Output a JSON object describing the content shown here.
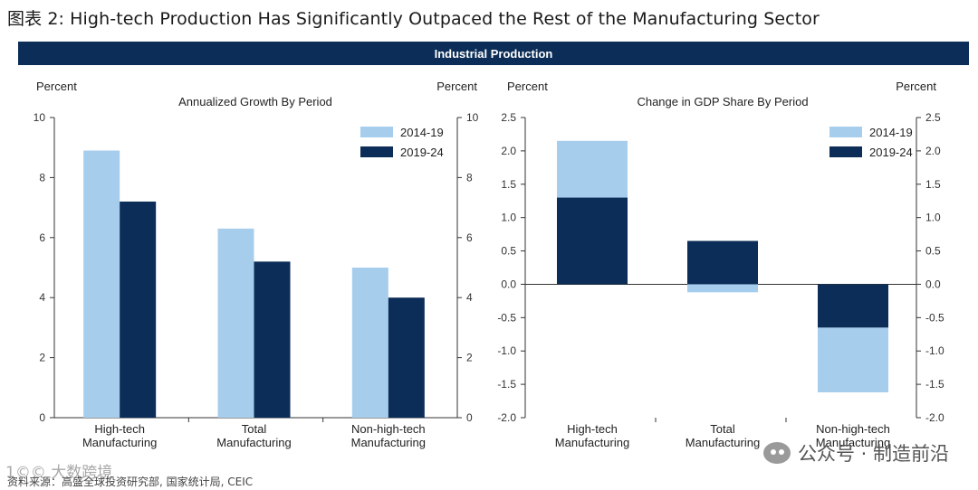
{
  "page": {
    "title": "图表 2: High-tech Production Has Significantly Outpaced the Rest of the Manufacturing Sector",
    "banner": "Industrial Production",
    "footnote": "资料来源：高盛全球投资研究部, 国家统计局, CEIC",
    "watermark_left": "1©© 大数跨境",
    "watermark_right": "公众号 · 制造前沿"
  },
  "colors": {
    "series_2014_19": "#a7cdec",
    "series_2019_24": "#0b2d57",
    "banner": "#0b2d57",
    "axis": "#333333"
  },
  "chart_data": [
    {
      "type": "bar",
      "title": "Annualized Growth By Period",
      "ylabel_left": "Percent",
      "ylabel_right": "Percent",
      "categories": [
        "High-tech\nManufacturing",
        "Total\nManufacturing",
        "Non-high-tech\nManufacturing"
      ],
      "series": [
        {
          "name": "2014-19",
          "values": [
            8.9,
            6.3,
            5.0
          ]
        },
        {
          "name": "2019-24",
          "values": [
            7.2,
            5.2,
            4.0
          ]
        }
      ],
      "ylim": [
        0,
        10
      ],
      "yticks": [
        "0",
        "2",
        "4",
        "6",
        "8",
        "10"
      ],
      "legend": "top-right"
    },
    {
      "type": "bar",
      "stacked": true,
      "title": "Change in GDP Share By Period",
      "ylabel_left": "Percent",
      "ylabel_right": "Percent",
      "categories": [
        "High-tech\nManufacturing",
        "Total\nManufacturing",
        "Non-high-tech\nManufacturing"
      ],
      "series": [
        {
          "name": "2014-19",
          "values": [
            0.85,
            -0.12,
            -0.97
          ]
        },
        {
          "name": "2019-24",
          "values": [
            1.3,
            0.65,
            -0.65
          ]
        }
      ],
      "ylim": [
        -2.0,
        2.5
      ],
      "yticks": [
        "-2.0",
        "-1.5",
        "-1.0",
        "-0.5",
        "0.0",
        "0.5",
        "1.0",
        "1.5",
        "2.0",
        "2.5"
      ],
      "legend": "top-right"
    }
  ]
}
